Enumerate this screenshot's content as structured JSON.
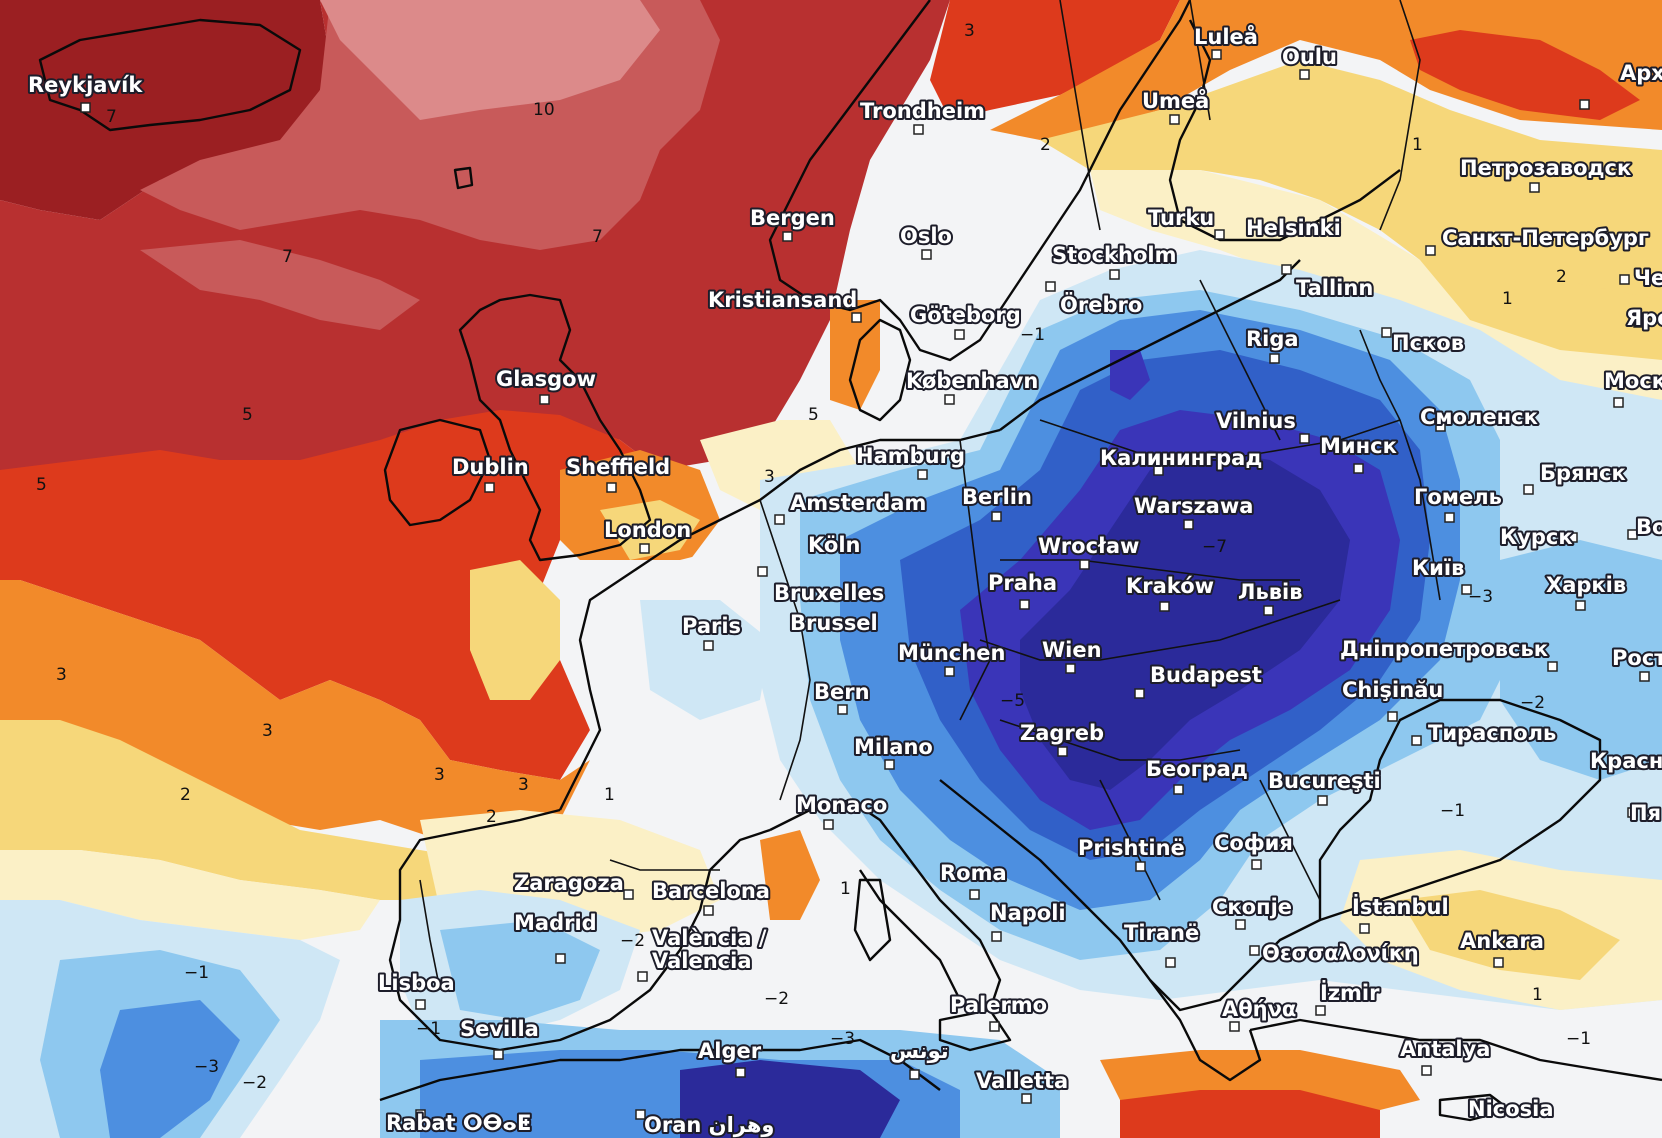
{
  "palette": {
    "deep_red": "#9b1f22",
    "red": "#b83030",
    "rose": "#c85a5a",
    "pink": "#dc8a8a",
    "red_orange": "#dd3a1c",
    "orange": "#f28a2a",
    "yellow": "#f6d77a",
    "cream": "#fbf0c6",
    "white": "#f3f4f6",
    "ice": "#cfe7f5",
    "light_blue": "#8ec8ef",
    "blue": "#4d8fe0",
    "mid_blue": "#3160c8",
    "deep_blue": "#3a35b8",
    "indigo": "#2b2a9a"
  },
  "cities": [
    {
      "id": "reykjavik",
      "name": "Reykjavík"
    },
    {
      "id": "trondheim",
      "name": "Trondheim"
    },
    {
      "id": "lulea",
      "name": "Luleå"
    },
    {
      "id": "oulu",
      "name": "Oulu"
    },
    {
      "id": "umea",
      "name": "Umeå"
    },
    {
      "id": "arkh",
      "name": "Арх"
    },
    {
      "id": "petrozavodsk",
      "name": "Петрозаводск"
    },
    {
      "id": "bergen",
      "name": "Bergen"
    },
    {
      "id": "oslo",
      "name": "Oslo"
    },
    {
      "id": "turku",
      "name": "Turku"
    },
    {
      "id": "helsinki",
      "name": "Helsinki"
    },
    {
      "id": "spb",
      "name": "Санкт-Петербург"
    },
    {
      "id": "che",
      "name": "Че"
    },
    {
      "id": "stockholm",
      "name": "Stockholm"
    },
    {
      "id": "tallinn",
      "name": "Tallinn"
    },
    {
      "id": "kristiansand",
      "name": "Kristiansand"
    },
    {
      "id": "orebro",
      "name": "Örebro"
    },
    {
      "id": "yaro",
      "name": "Яро"
    },
    {
      "id": "goteborg",
      "name": "Göteborg"
    },
    {
      "id": "riga",
      "name": "Riga"
    },
    {
      "id": "pskov",
      "name": "Псков"
    },
    {
      "id": "glasgow",
      "name": "Glasgow"
    },
    {
      "id": "kobenhavn",
      "name": "København"
    },
    {
      "id": "moskva",
      "name": "Москва"
    },
    {
      "id": "smolensk",
      "name": "Смоленск"
    },
    {
      "id": "vilnius",
      "name": "Vilnius"
    },
    {
      "id": "dublin",
      "name": "Dublin"
    },
    {
      "id": "sheffield",
      "name": "Sheffield"
    },
    {
      "id": "hamburg",
      "name": "Hamburg"
    },
    {
      "id": "kaliningrad",
      "name": "Калининград"
    },
    {
      "id": "minsk",
      "name": "Минск"
    },
    {
      "id": "bryansk",
      "name": "Брянск"
    },
    {
      "id": "amsterdam",
      "name": "Amsterdam"
    },
    {
      "id": "berlin",
      "name": "Berlin"
    },
    {
      "id": "gomel",
      "name": "Гомель"
    },
    {
      "id": "london",
      "name": "London"
    },
    {
      "id": "warszawa",
      "name": "Warszawa"
    },
    {
      "id": "kursk",
      "name": "Курск"
    },
    {
      "id": "voro",
      "name": "Воро"
    },
    {
      "id": "koln",
      "name": "Köln"
    },
    {
      "id": "wroclaw",
      "name": "Wrocław"
    },
    {
      "id": "kyiv",
      "name": "Київ"
    },
    {
      "id": "bruxelles",
      "name": "Bruxelles"
    },
    {
      "id": "brussel",
      "name": "Brussel"
    },
    {
      "id": "praha",
      "name": "Praha"
    },
    {
      "id": "krakow",
      "name": "Kraków"
    },
    {
      "id": "lviv",
      "name": "Львів"
    },
    {
      "id": "kharkiv",
      "name": "Харків"
    },
    {
      "id": "paris",
      "name": "Paris"
    },
    {
      "id": "munchen",
      "name": "München"
    },
    {
      "id": "wien",
      "name": "Wien"
    },
    {
      "id": "dnipro",
      "name": "Дніпропетровськ"
    },
    {
      "id": "rost",
      "name": "Рост"
    },
    {
      "id": "budapest",
      "name": "Budapest"
    },
    {
      "id": "bern",
      "name": "Bern"
    },
    {
      "id": "chisinau",
      "name": "Chişinău"
    },
    {
      "id": "tiraspol",
      "name": "Тирасполь"
    },
    {
      "id": "zagreb",
      "name": "Zagreb"
    },
    {
      "id": "milano",
      "name": "Milano"
    },
    {
      "id": "krasn",
      "name": "Красн"
    },
    {
      "id": "beograd",
      "name": "Београд"
    },
    {
      "id": "bucuresti",
      "name": "Bucureşti"
    },
    {
      "id": "pya",
      "name": "Пя"
    },
    {
      "id": "monaco",
      "name": "Monaco"
    },
    {
      "id": "prishtine",
      "name": "Prishtinë"
    },
    {
      "id": "sofia",
      "name": "София"
    },
    {
      "id": "zaragoza",
      "name": "Zaragoza"
    },
    {
      "id": "barcelona",
      "name": "Barcelona"
    },
    {
      "id": "roma",
      "name": "Roma"
    },
    {
      "id": "madrid",
      "name": "Madrid"
    },
    {
      "id": "napoli",
      "name": "Napoli"
    },
    {
      "id": "skopje",
      "name": "Скопје"
    },
    {
      "id": "istanbul",
      "name": "İstanbul"
    },
    {
      "id": "valencia1",
      "name": "València /"
    },
    {
      "id": "valencia2",
      "name": "Valencia"
    },
    {
      "id": "tirane",
      "name": "Tiranë"
    },
    {
      "id": "ankara",
      "name": "Ankara"
    },
    {
      "id": "thessaloniki",
      "name": "Θεσσαλονίκη"
    },
    {
      "id": "lisboa",
      "name": "Lisboa"
    },
    {
      "id": "palermo",
      "name": "Palermo"
    },
    {
      "id": "athina",
      "name": "Αθήνα"
    },
    {
      "id": "izmir",
      "name": "İzmir"
    },
    {
      "id": "sevilla",
      "name": "Sevilla"
    },
    {
      "id": "alger",
      "name": "Alger"
    },
    {
      "id": "tunis",
      "name": "تونس"
    },
    {
      "id": "antalya",
      "name": "Antalya"
    },
    {
      "id": "valletta",
      "name": "Valletta"
    },
    {
      "id": "rabat",
      "name": "Rabat ⵔⴱⴰⵟ"
    },
    {
      "id": "oran",
      "name": "Oran وهران"
    },
    {
      "id": "nicosia",
      "name": "Nicosia"
    }
  ],
  "contour_labels": [
    {
      "id": "c10",
      "text": "10"
    },
    {
      "id": "c7a",
      "text": "7"
    },
    {
      "id": "c7b",
      "text": "7"
    },
    {
      "id": "c7c",
      "text": "7"
    },
    {
      "id": "c5a",
      "text": "5"
    },
    {
      "id": "c5b",
      "text": "5"
    },
    {
      "id": "c5c",
      "text": "5"
    },
    {
      "id": "c3a",
      "text": "3"
    },
    {
      "id": "c3b",
      "text": "3"
    },
    {
      "id": "c3c",
      "text": "3"
    },
    {
      "id": "c3d",
      "text": "3"
    },
    {
      "id": "c3e",
      "text": "3"
    },
    {
      "id": "c3f",
      "text": "3"
    },
    {
      "id": "c2a",
      "text": "2"
    },
    {
      "id": "c2b",
      "text": "2"
    },
    {
      "id": "c2c",
      "text": "2"
    },
    {
      "id": "c2d",
      "text": "2"
    },
    {
      "id": "c1a",
      "text": "1"
    },
    {
      "id": "c1b",
      "text": "1"
    },
    {
      "id": "c1c",
      "text": "1"
    },
    {
      "id": "c1d",
      "text": "1"
    },
    {
      "id": "c1e",
      "text": "1"
    },
    {
      "id": "cm1a",
      "text": "−1"
    },
    {
      "id": "cm1b",
      "text": "−1"
    },
    {
      "id": "cm1c",
      "text": "−1"
    },
    {
      "id": "cm1d",
      "text": "−1"
    },
    {
      "id": "cm1e",
      "text": "−1"
    },
    {
      "id": "cm2a",
      "text": "−2"
    },
    {
      "id": "cm2b",
      "text": "−2"
    },
    {
      "id": "cm2c",
      "text": "−2"
    },
    {
      "id": "cm2d",
      "text": "−2"
    },
    {
      "id": "cm3a",
      "text": "−3"
    },
    {
      "id": "cm3b",
      "text": "−3"
    },
    {
      "id": "cm3c",
      "text": "−3"
    },
    {
      "id": "cm5",
      "text": "−5"
    },
    {
      "id": "cm7",
      "text": "−7"
    }
  ]
}
